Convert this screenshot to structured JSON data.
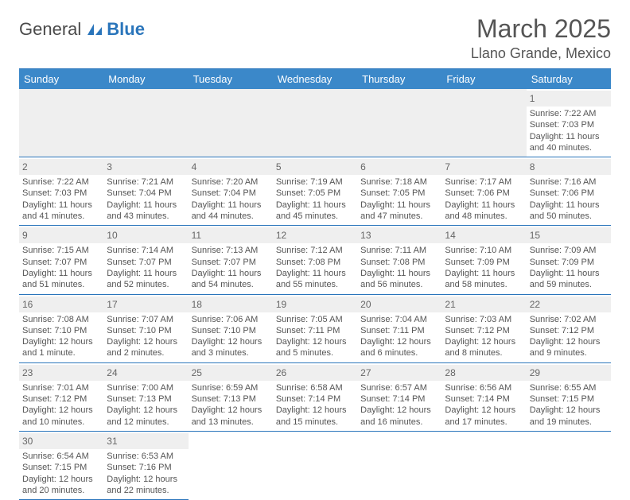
{
  "logo": {
    "textA": "General",
    "textB": "Blue"
  },
  "title": "March 2025",
  "location": "Llano Grande, Mexico",
  "colors": {
    "header_bg": "#3b88c9",
    "border": "#2a75bb",
    "blank_bg": "#efefef",
    "text": "#555555"
  },
  "dayHeaders": [
    "Sunday",
    "Monday",
    "Tuesday",
    "Wednesday",
    "Thursday",
    "Friday",
    "Saturday"
  ],
  "weeks": [
    [
      {
        "blank": true
      },
      {
        "blank": true
      },
      {
        "blank": true
      },
      {
        "blank": true
      },
      {
        "blank": true
      },
      {
        "blank": true
      },
      {
        "n": "1",
        "sunrise": "Sunrise: 7:22 AM",
        "sunset": "Sunset: 7:03 PM",
        "daylight": "Daylight: 11 hours and 40 minutes."
      }
    ],
    [
      {
        "n": "2",
        "sunrise": "Sunrise: 7:22 AM",
        "sunset": "Sunset: 7:03 PM",
        "daylight": "Daylight: 11 hours and 41 minutes."
      },
      {
        "n": "3",
        "sunrise": "Sunrise: 7:21 AM",
        "sunset": "Sunset: 7:04 PM",
        "daylight": "Daylight: 11 hours and 43 minutes."
      },
      {
        "n": "4",
        "sunrise": "Sunrise: 7:20 AM",
        "sunset": "Sunset: 7:04 PM",
        "daylight": "Daylight: 11 hours and 44 minutes."
      },
      {
        "n": "5",
        "sunrise": "Sunrise: 7:19 AM",
        "sunset": "Sunset: 7:05 PM",
        "daylight": "Daylight: 11 hours and 45 minutes."
      },
      {
        "n": "6",
        "sunrise": "Sunrise: 7:18 AM",
        "sunset": "Sunset: 7:05 PM",
        "daylight": "Daylight: 11 hours and 47 minutes."
      },
      {
        "n": "7",
        "sunrise": "Sunrise: 7:17 AM",
        "sunset": "Sunset: 7:06 PM",
        "daylight": "Daylight: 11 hours and 48 minutes."
      },
      {
        "n": "8",
        "sunrise": "Sunrise: 7:16 AM",
        "sunset": "Sunset: 7:06 PM",
        "daylight": "Daylight: 11 hours and 50 minutes."
      }
    ],
    [
      {
        "n": "9",
        "sunrise": "Sunrise: 7:15 AM",
        "sunset": "Sunset: 7:07 PM",
        "daylight": "Daylight: 11 hours and 51 minutes."
      },
      {
        "n": "10",
        "sunrise": "Sunrise: 7:14 AM",
        "sunset": "Sunset: 7:07 PM",
        "daylight": "Daylight: 11 hours and 52 minutes."
      },
      {
        "n": "11",
        "sunrise": "Sunrise: 7:13 AM",
        "sunset": "Sunset: 7:07 PM",
        "daylight": "Daylight: 11 hours and 54 minutes."
      },
      {
        "n": "12",
        "sunrise": "Sunrise: 7:12 AM",
        "sunset": "Sunset: 7:08 PM",
        "daylight": "Daylight: 11 hours and 55 minutes."
      },
      {
        "n": "13",
        "sunrise": "Sunrise: 7:11 AM",
        "sunset": "Sunset: 7:08 PM",
        "daylight": "Daylight: 11 hours and 56 minutes."
      },
      {
        "n": "14",
        "sunrise": "Sunrise: 7:10 AM",
        "sunset": "Sunset: 7:09 PM",
        "daylight": "Daylight: 11 hours and 58 minutes."
      },
      {
        "n": "15",
        "sunrise": "Sunrise: 7:09 AM",
        "sunset": "Sunset: 7:09 PM",
        "daylight": "Daylight: 11 hours and 59 minutes."
      }
    ],
    [
      {
        "n": "16",
        "sunrise": "Sunrise: 7:08 AM",
        "sunset": "Sunset: 7:10 PM",
        "daylight": "Daylight: 12 hours and 1 minute."
      },
      {
        "n": "17",
        "sunrise": "Sunrise: 7:07 AM",
        "sunset": "Sunset: 7:10 PM",
        "daylight": "Daylight: 12 hours and 2 minutes."
      },
      {
        "n": "18",
        "sunrise": "Sunrise: 7:06 AM",
        "sunset": "Sunset: 7:10 PM",
        "daylight": "Daylight: 12 hours and 3 minutes."
      },
      {
        "n": "19",
        "sunrise": "Sunrise: 7:05 AM",
        "sunset": "Sunset: 7:11 PM",
        "daylight": "Daylight: 12 hours and 5 minutes."
      },
      {
        "n": "20",
        "sunrise": "Sunrise: 7:04 AM",
        "sunset": "Sunset: 7:11 PM",
        "daylight": "Daylight: 12 hours and 6 minutes."
      },
      {
        "n": "21",
        "sunrise": "Sunrise: 7:03 AM",
        "sunset": "Sunset: 7:12 PM",
        "daylight": "Daylight: 12 hours and 8 minutes."
      },
      {
        "n": "22",
        "sunrise": "Sunrise: 7:02 AM",
        "sunset": "Sunset: 7:12 PM",
        "daylight": "Daylight: 12 hours and 9 minutes."
      }
    ],
    [
      {
        "n": "23",
        "sunrise": "Sunrise: 7:01 AM",
        "sunset": "Sunset: 7:12 PM",
        "daylight": "Daylight: 12 hours and 10 minutes."
      },
      {
        "n": "24",
        "sunrise": "Sunrise: 7:00 AM",
        "sunset": "Sunset: 7:13 PM",
        "daylight": "Daylight: 12 hours and 12 minutes."
      },
      {
        "n": "25",
        "sunrise": "Sunrise: 6:59 AM",
        "sunset": "Sunset: 7:13 PM",
        "daylight": "Daylight: 12 hours and 13 minutes."
      },
      {
        "n": "26",
        "sunrise": "Sunrise: 6:58 AM",
        "sunset": "Sunset: 7:14 PM",
        "daylight": "Daylight: 12 hours and 15 minutes."
      },
      {
        "n": "27",
        "sunrise": "Sunrise: 6:57 AM",
        "sunset": "Sunset: 7:14 PM",
        "daylight": "Daylight: 12 hours and 16 minutes."
      },
      {
        "n": "28",
        "sunrise": "Sunrise: 6:56 AM",
        "sunset": "Sunset: 7:14 PM",
        "daylight": "Daylight: 12 hours and 17 minutes."
      },
      {
        "n": "29",
        "sunrise": "Sunrise: 6:55 AM",
        "sunset": "Sunset: 7:15 PM",
        "daylight": "Daylight: 12 hours and 19 minutes."
      }
    ],
    [
      {
        "n": "30",
        "sunrise": "Sunrise: 6:54 AM",
        "sunset": "Sunset: 7:15 PM",
        "daylight": "Daylight: 12 hours and 20 minutes."
      },
      {
        "n": "31",
        "sunrise": "Sunrise: 6:53 AM",
        "sunset": "Sunset: 7:16 PM",
        "daylight": "Daylight: 12 hours and 22 minutes."
      },
      {
        "blank": true,
        "noborder": true
      },
      {
        "blank": true,
        "noborder": true
      },
      {
        "blank": true,
        "noborder": true
      },
      {
        "blank": true,
        "noborder": true
      },
      {
        "blank": true,
        "noborder": true
      }
    ]
  ]
}
